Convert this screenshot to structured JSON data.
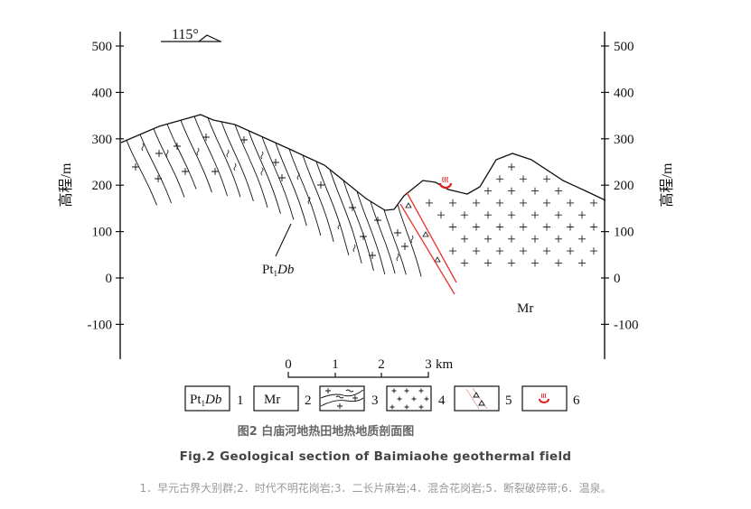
{
  "diagram": {
    "orientation_label": "115°",
    "y_axis_label": "高程/m",
    "y_ticks": [
      "500",
      "400",
      "300",
      "200",
      "100",
      "0",
      "-100"
    ],
    "unit_labels": {
      "pt_prefix": "Pt",
      "pt_sub": "1",
      "pt_suffix": "Db",
      "mr": "Mr"
    },
    "scale_bar": {
      "ticks": [
        "0",
        "1",
        "2",
        "3"
      ],
      "unit": "km"
    },
    "legend": [
      {
        "num": "1",
        "symbol": "Pt1Db"
      },
      {
        "num": "2",
        "symbol": "Mr"
      },
      {
        "num": "3",
        "pattern": "gneiss"
      },
      {
        "num": "4",
        "pattern": "crosses"
      },
      {
        "num": "5",
        "pattern": "fault-breccia"
      },
      {
        "num": "6",
        "pattern": "hot-spring"
      }
    ],
    "colors": {
      "fault": "#e8312f",
      "hot_spring": "#e0201c",
      "line": "#111111"
    }
  },
  "captions": {
    "cn": "图2 白庙河地热田地热地质剖面图",
    "en": "Fig.2 Geological section of Baimiaohe geothermal field",
    "note": "1．早元古界大别群;2．时代不明花岗岩;3．二长片麻岩;4．混合花岗岩;5．断裂破碎带;6．温泉。"
  }
}
